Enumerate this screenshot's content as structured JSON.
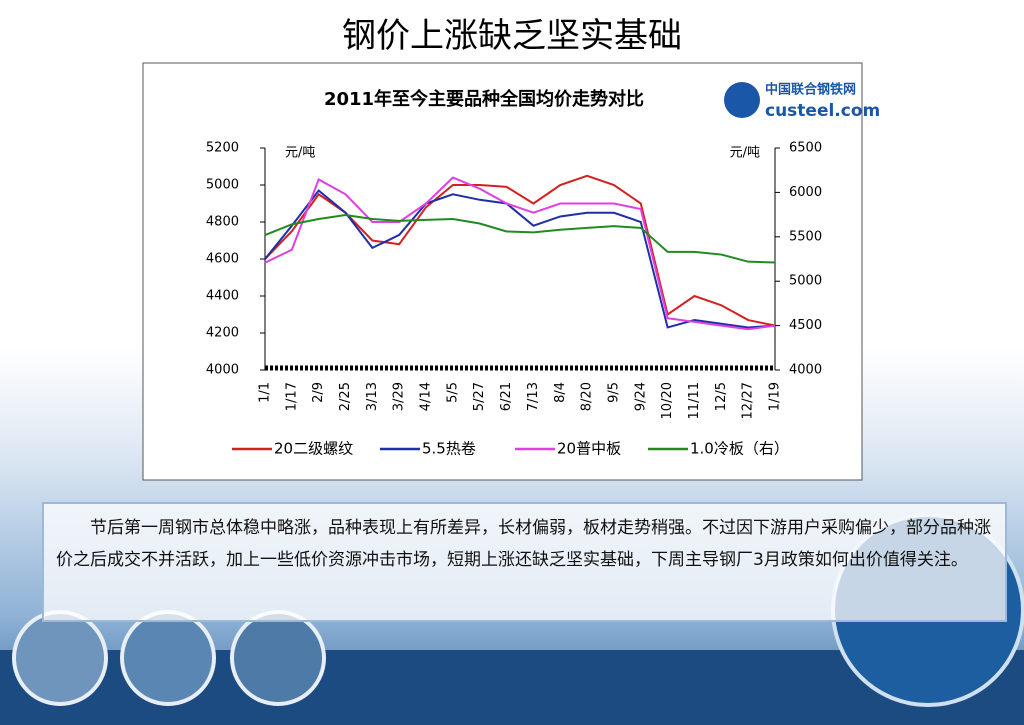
{
  "slide_title": "钢价上涨缺乏坚实基础",
  "paragraph": "节后第一周钢市总体稳中略涨，品种表现上有所差异，长材偏弱，板材走势稍强。不过因下游用户采购偏少，部分品种涨价之后成交不并活跃，加上一些低价资源冲击市场，短期上涨还缺乏坚实基础，下周主导钢厂3月政策如何出价值得关注。",
  "chart_data": {
    "type": "line",
    "title": "2011年至今主要品种全国均价走势对比",
    "logo": {
      "name": "中国联合钢铁网",
      "site": "custeel.com"
    },
    "y_label": "元/吨",
    "y2_label": "元/吨",
    "categories": [
      "1/1",
      "1/17",
      "2/9",
      "2/25",
      "3/13",
      "3/29",
      "4/14",
      "5/5",
      "5/27",
      "6/21",
      "7/13",
      "8/4",
      "8/20",
      "9/5",
      "9/24",
      "10/20",
      "11/11",
      "12/5",
      "12/27",
      "1/19"
    ],
    "ylim": [
      4000,
      5200
    ],
    "yticks": [
      4000,
      4200,
      4400,
      4600,
      4800,
      5000,
      5200
    ],
    "y2lim": [
      4000,
      6500
    ],
    "y2ticks": [
      4000,
      4500,
      5000,
      5500,
      6000,
      6500
    ],
    "series": [
      {
        "name": "20二级螺纹",
        "color": "#d42020",
        "values": [
          4600,
          4750,
          4950,
          4850,
          4700,
          4680,
          4880,
          5000,
          5000,
          4990,
          4900,
          5000,
          5050,
          5000,
          4900,
          4300,
          4400,
          4350,
          4270,
          4240
        ]
      },
      {
        "name": "5.5热卷",
        "color": "#1f2fa8",
        "values": [
          4600,
          4780,
          4970,
          4850,
          4660,
          4730,
          4900,
          4950,
          4920,
          4900,
          4780,
          4830,
          4850,
          4850,
          4800,
          4230,
          4270,
          4250,
          4230,
          4240
        ]
      },
      {
        "name": "20普中板",
        "color": "#e040e0",
        "values": [
          4580,
          4650,
          5030,
          4950,
          4800,
          4800,
          4900,
          5040,
          4980,
          4900,
          4850,
          4900,
          4900,
          4900,
          4870,
          4280,
          4260,
          4240,
          4220,
          4240
        ]
      },
      {
        "name": "1.0冷板（右）",
        "color": "#218a21",
        "axis": "y2",
        "values": [
          5520,
          5640,
          5700,
          5745,
          5700,
          5680,
          5690,
          5700,
          5650,
          5560,
          5550,
          5580,
          5600,
          5620,
          5600,
          5330,
          5330,
          5300,
          5220,
          5210
        ]
      }
    ]
  }
}
